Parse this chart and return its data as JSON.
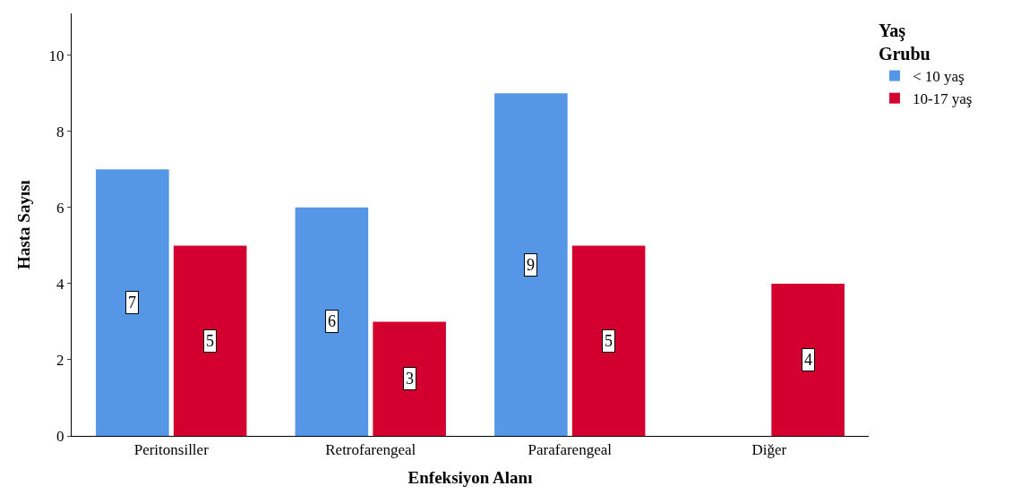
{
  "chart_data": {
    "type": "bar",
    "xlabel": "Enfeksiyon Alanı",
    "ylabel": "Hasta Sayısı",
    "legend_title": "Yaş Grubu",
    "categories": [
      "Peritonsiller",
      "Retrofarengeal",
      "Parafarengeal",
      "Diğer"
    ],
    "series": [
      {
        "name": "< 10 yaş",
        "color": "#5596e6",
        "values": [
          7,
          6,
          9,
          null
        ]
      },
      {
        "name": "10-17 yaş",
        "color": "#d3002f",
        "values": [
          5,
          3,
          5,
          4
        ]
      }
    ],
    "ylim": [
      0,
      11.1
    ],
    "yticks": [
      0,
      2,
      4,
      6,
      8,
      10
    ],
    "legend": "top right",
    "data_labels": true
  }
}
